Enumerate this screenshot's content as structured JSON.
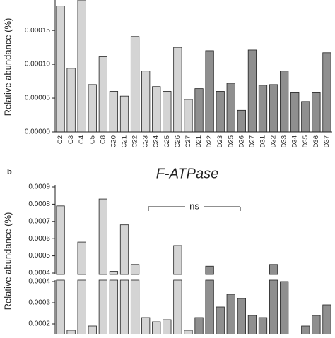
{
  "chart_data": [
    {
      "type": "bar",
      "ylabel": "Relative abundance (%)",
      "categories": [
        "C2",
        "C3",
        "C4",
        "C5",
        "C8",
        "C20",
        "C21",
        "C22",
        "C23",
        "C24",
        "C25",
        "C26",
        "C27",
        "D21",
        "D22",
        "D23",
        "D25",
        "D26",
        "D27",
        "D31",
        "D32",
        "D33",
        "D34",
        "D35",
        "D36",
        "D37"
      ],
      "values": [
        0.000186,
        9.4e-05,
        0.000195,
        7e-05,
        0.000111,
        6e-05,
        5.3e-05,
        0.000141,
        9e-05,
        6.7e-05,
        6e-05,
        0.000125,
        4.8e-05,
        6.4e-05,
        0.00012,
        6e-05,
        7.2e-05,
        3.2e-05,
        0.000121,
        6.9e-05,
        7e-05,
        9e-05,
        5.8e-05,
        4.5e-05,
        5.8e-05,
        0.000117
      ],
      "colors": [
        "#d4d4d4",
        "#d4d4d4",
        "#d4d4d4",
        "#d4d4d4",
        "#d4d4d4",
        "#d4d4d4",
        "#d4d4d4",
        "#d4d4d4",
        "#d4d4d4",
        "#d4d4d4",
        "#d4d4d4",
        "#d4d4d4",
        "#d4d4d4",
        "#8f8f8f",
        "#8f8f8f",
        "#8f8f8f",
        "#8f8f8f",
        "#8f8f8f",
        "#8f8f8f",
        "#8f8f8f",
        "#8f8f8f",
        "#8f8f8f",
        "#8f8f8f",
        "#8f8f8f",
        "#8f8f8f",
        "#8f8f8f"
      ],
      "ylim": [
        0,
        0.000195
      ],
      "yticks": [
        {
          "value": 0,
          "label": "0.00000"
        },
        {
          "value": 5e-05,
          "label": "0.00005"
        },
        {
          "value": 0.0001,
          "label": "0.00010"
        },
        {
          "value": 0.00015,
          "label": "0.00015"
        }
      ]
    },
    {
      "type": "broken-bar",
      "panel_label": "b",
      "title": "F-ATPase",
      "ylabel": "Relative abundance (%)",
      "annotation": "ns",
      "values": [
        0.00079,
        0.00017,
        0.00058,
        0.00019,
        0.00083,
        0.00041,
        0.00068,
        0.00045,
        0.00023,
        0.00021,
        0.00022,
        0.00056,
        0.00017,
        0.00023,
        0.00044,
        0.00028,
        0.00034,
        0.00032,
        0.00024,
        0.00023,
        0.00045,
        0.0004,
        0.00015,
        0.00019,
        0.00024,
        0.00029
      ],
      "colors": [
        "#d4d4d4",
        "#d4d4d4",
        "#d4d4d4",
        "#d4d4d4",
        "#d4d4d4",
        "#d4d4d4",
        "#d4d4d4",
        "#d4d4d4",
        "#d4d4d4",
        "#d4d4d4",
        "#d4d4d4",
        "#d4d4d4",
        "#d4d4d4",
        "#8f8f8f",
        "#8f8f8f",
        "#8f8f8f",
        "#8f8f8f",
        "#8f8f8f",
        "#8f8f8f",
        "#8f8f8f",
        "#8f8f8f",
        "#8f8f8f",
        "#8f8f8f",
        "#8f8f8f",
        "#8f8f8f",
        "#8f8f8f"
      ],
      "ylim": [
        0.00015,
        0.0004
      ],
      "yticks": [
        0.0002,
        0.0003,
        0.0004
      ],
      "y2lim": [
        0.0004,
        0.0009
      ],
      "y2ticks": [
        0.0004,
        0.0005,
        0.0006,
        0.0007,
        0.0008,
        0.0009
      ]
    }
  ]
}
